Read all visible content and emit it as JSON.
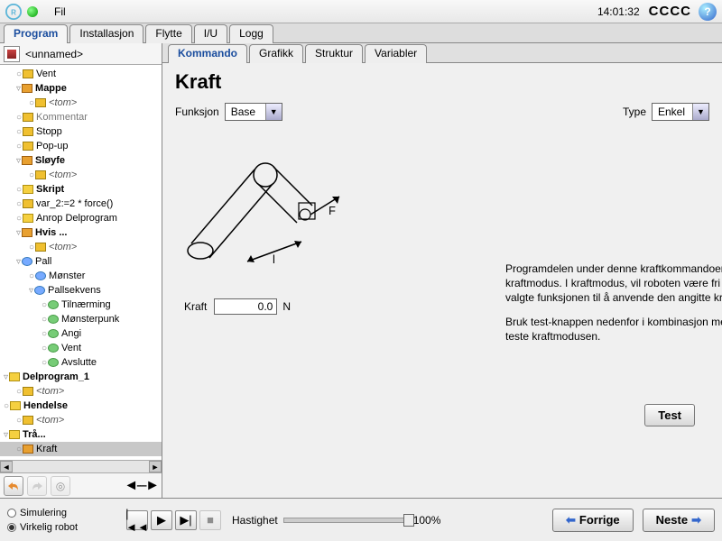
{
  "menubar": {
    "fil": "Fil",
    "clock": "14:01:32",
    "cccc": "CCCC"
  },
  "main_tabs": [
    "Program",
    "Installasjon",
    "Flytte",
    "I/U",
    "Logg"
  ],
  "main_tab_active": 0,
  "tree_header": "<unnamed>",
  "tree": [
    {
      "d": 1,
      "ic": "ic-cmd",
      "t": "Vent"
    },
    {
      "d": 1,
      "ic": "ic-folder",
      "t": "Mappe",
      "b": true,
      "exp": true
    },
    {
      "d": 2,
      "ic": "ic-cmd",
      "t": "<tom>",
      "it": true
    },
    {
      "d": 1,
      "ic": "ic-cmd",
      "t": "Kommentar",
      "g": true
    },
    {
      "d": 1,
      "ic": "ic-cmd",
      "t": "Stopp"
    },
    {
      "d": 1,
      "ic": "ic-cmd",
      "t": "Pop-up"
    },
    {
      "d": 1,
      "ic": "ic-folder",
      "t": "Sløyfe",
      "b": true,
      "exp": true
    },
    {
      "d": 2,
      "ic": "ic-cmd",
      "t": "<tom>",
      "it": true
    },
    {
      "d": 1,
      "ic": "ic-yellow",
      "t": "Skript",
      "b": true
    },
    {
      "d": 1,
      "ic": "ic-cmd",
      "t": "var_2:=2 * force()"
    },
    {
      "d": 1,
      "ic": "ic-yellow",
      "t": "Anrop Delprogram"
    },
    {
      "d": 1,
      "ic": "ic-folder",
      "t": "Hvis ...",
      "b": true,
      "exp": true
    },
    {
      "d": 2,
      "ic": "ic-cmd",
      "t": "<tom>",
      "it": true
    },
    {
      "d": 1,
      "ic": "ic-dot",
      "t": "Pall",
      "exp": true
    },
    {
      "d": 2,
      "ic": "ic-dot",
      "t": "Mønster"
    },
    {
      "d": 2,
      "ic": "ic-dot",
      "t": "Pallsekvens",
      "exp": true
    },
    {
      "d": 3,
      "ic": "ic-green",
      "t": "Tilnærming"
    },
    {
      "d": 3,
      "ic": "ic-green",
      "t": "Mønsterpunk"
    },
    {
      "d": 3,
      "ic": "ic-green",
      "t": "Angi"
    },
    {
      "d": 3,
      "ic": "ic-green",
      "t": "Vent"
    },
    {
      "d": 3,
      "ic": "ic-green",
      "t": "Avslutte"
    },
    {
      "d": 0,
      "ic": "ic-yellow",
      "t": "Delprogram_1",
      "b": true,
      "exp": true
    },
    {
      "d": 1,
      "ic": "ic-cmd",
      "t": "<tom>",
      "it": true
    },
    {
      "d": 0,
      "ic": "ic-yellow",
      "t": "Hendelse",
      "b": true
    },
    {
      "d": 1,
      "ic": "ic-cmd",
      "t": "<tom>",
      "it": true
    },
    {
      "d": 0,
      "ic": "ic-yellow",
      "t": "Trå...",
      "b": true,
      "exp": true
    },
    {
      "d": 1,
      "ic": "ic-folder",
      "t": "Kraft",
      "sel": true
    }
  ],
  "sub_tabs": [
    "Kommando",
    "Grafikk",
    "Struktur",
    "Variabler"
  ],
  "sub_tab_active": 0,
  "panel": {
    "title": "Kraft",
    "funksjon_label": "Funksjon",
    "funksjon_value": "Base",
    "type_label": "Type",
    "type_value": "Enkel",
    "kraft_label": "Kraft",
    "kraft_value": "0.0",
    "kraft_unit": "N",
    "desc1": "Programdelen under denne kraftkommandoen vil være i kraftmodus. I kraftmodus, vil roboten være fri i retningen av den valgte funksjonen til å anvende den angitte kraften.",
    "desc2": "Bruk test-knappen nedenfor i kombinasjon med lære-knappen for å teste kraftmodusen.",
    "test": "Test"
  },
  "footer": {
    "sim": "Simulering",
    "real": "Virkelig robot",
    "speed_label": "Hastighet",
    "speed_value": "100%",
    "prev": "Forrige",
    "next": "Neste"
  }
}
